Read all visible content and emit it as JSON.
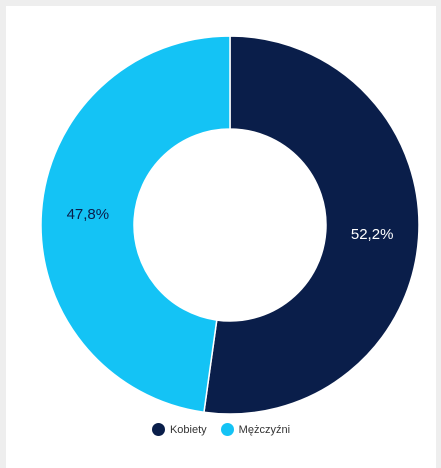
{
  "chart_data": {
    "type": "pie",
    "variant": "donut",
    "categories": [
      "Kobiety",
      "Mężczyźni"
    ],
    "values": [
      52.2,
      47.8
    ],
    "value_labels": [
      "52,2%",
      "47,8%"
    ],
    "colors": [
      "#0a1e4a",
      "#14c3f5"
    ],
    "label_colors": [
      "#ffffff",
      "#0a1e4a"
    ],
    "legend": {
      "placement": "bottom-center",
      "items": [
        {
          "label": "Kobiety",
          "color": "#0a1e4a"
        },
        {
          "label": "Mężczyźni",
          "color": "#14c3f5"
        }
      ]
    }
  }
}
